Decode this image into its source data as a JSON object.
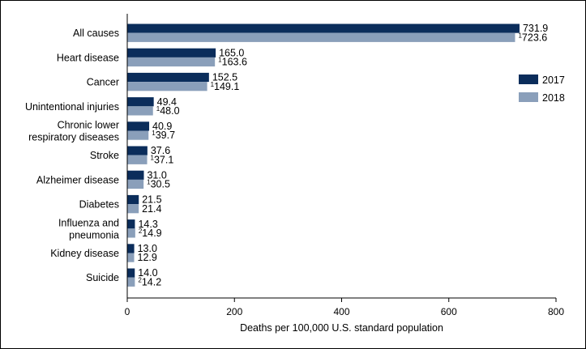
{
  "chart_data": {
    "type": "bar",
    "orientation": "horizontal",
    "categories": [
      [
        "All causes"
      ],
      [
        "Heart disease"
      ],
      [
        "Cancer"
      ],
      [
        "Unintentional injuries"
      ],
      [
        "Chronic lower",
        "respiratory diseases"
      ],
      [
        "Stroke"
      ],
      [
        "Alzheimer disease"
      ],
      [
        "Diabetes"
      ],
      [
        "Influenza and",
        "pneumonia"
      ],
      [
        "Kidney disease"
      ],
      [
        "Suicide"
      ]
    ],
    "series": [
      {
        "name": "2017",
        "color": "#0b2d5b",
        "values": [
          731.9,
          165.0,
          152.5,
          49.4,
          40.9,
          37.6,
          31.0,
          21.5,
          14.3,
          13.0,
          14.0
        ],
        "labels": [
          "731.9",
          "165.0",
          "152.5",
          "49.4",
          "40.9",
          "37.6",
          "31.0",
          "21.5",
          "14.3",
          "13.0",
          "14.0"
        ],
        "footnotes": [
          "",
          "",
          "",
          "",
          "",
          "",
          "",
          "",
          "",
          "",
          ""
        ]
      },
      {
        "name": "2018",
        "color": "#8a9fba",
        "values": [
          723.6,
          163.6,
          149.1,
          48.0,
          39.7,
          37.1,
          30.5,
          21.4,
          14.9,
          12.9,
          14.2
        ],
        "labels": [
          "723.6",
          "163.6",
          "149.1",
          "48.0",
          "39.7",
          "37.1",
          "30.5",
          "21.4",
          "14.9",
          "12.9",
          "14.2"
        ],
        "footnotes": [
          "1",
          "1",
          "1",
          "1",
          "1",
          "1",
          "1",
          "",
          "2",
          "",
          "2"
        ]
      }
    ],
    "xlabel": "Deaths per 100,000 U.S. standard population",
    "ylabel": "",
    "xlim": [
      0,
      800
    ],
    "xticks": [
      0,
      200,
      400,
      600,
      800
    ],
    "grid": false,
    "legend_position": "right"
  }
}
